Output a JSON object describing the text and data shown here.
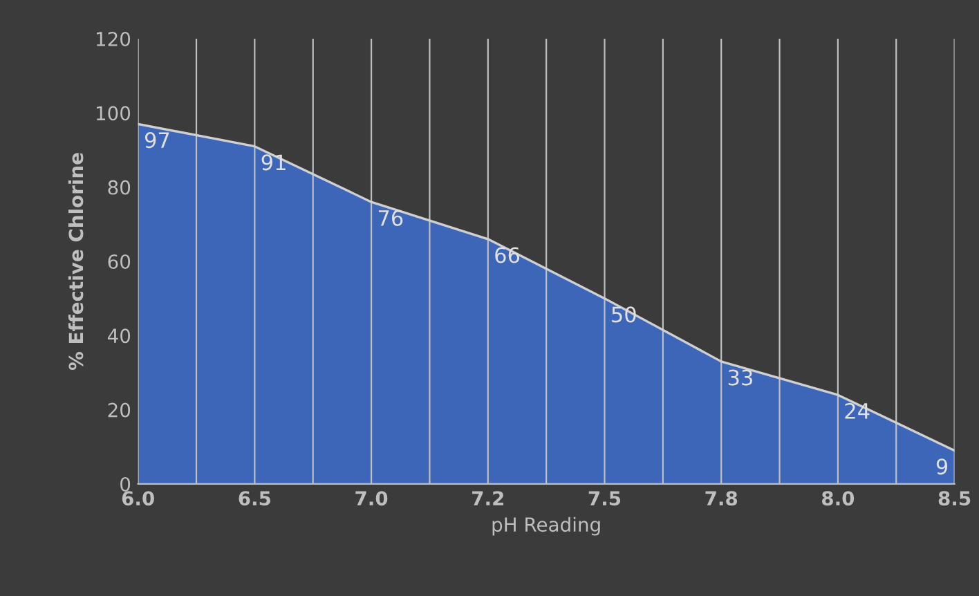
{
  "chart_data": {
    "type": "area",
    "xlabel": "pH Reading",
    "ylabel": "% Effective Chlorine",
    "categories": [
      "6.0",
      "6.5",
      "7.0",
      "7.2",
      "7.5",
      "7.8",
      "8.0",
      "8.5"
    ],
    "values": [
      97,
      91,
      76,
      66,
      50,
      33,
      24,
      9
    ],
    "color": "#3d65b8",
    "ylim": [
      0,
      120
    ],
    "yticks": [
      0,
      20,
      40,
      60,
      80,
      100,
      120
    ],
    "grid": "x",
    "data_labels": true,
    "legend": false
  }
}
